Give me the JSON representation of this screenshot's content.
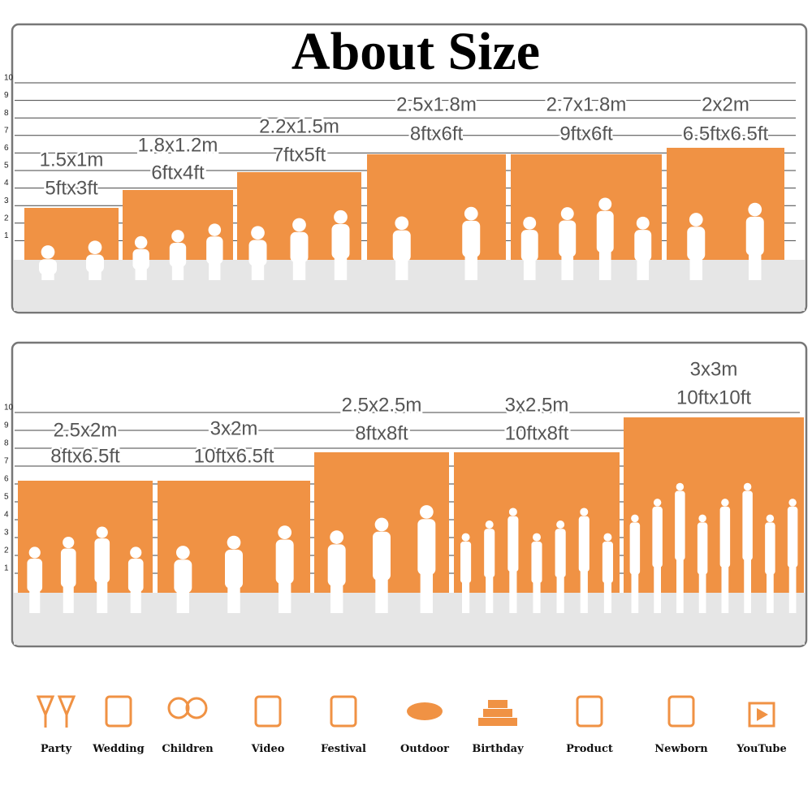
{
  "title": "About Size",
  "scale": [
    1,
    2,
    3,
    4,
    5,
    6,
    7,
    8,
    9,
    10
  ],
  "panels": [
    {
      "items": [
        {
          "metric": "1.5x1m",
          "feet": "5ftx3ft"
        },
        {
          "metric": "1.8x1.2m",
          "feet": "6ftx4ft"
        },
        {
          "metric": "2.2x1.5m",
          "feet": "7ftx5ft"
        },
        {
          "metric": "2.5x1.8m",
          "feet": "8ftx6ft"
        },
        {
          "metric": "2.7x1.8m",
          "feet": "9ftx6ft"
        },
        {
          "metric": "2x2m",
          "feet": "6.5ftx6.5ft"
        }
      ]
    },
    {
      "items": [
        {
          "metric": "2.5x2m",
          "feet": "8ftx6.5ft"
        },
        {
          "metric": "3x2m",
          "feet": "10ftx6.5ft"
        },
        {
          "metric": "2.5x2.5m",
          "feet": "8ftx8ft"
        },
        {
          "metric": "3x2.5m",
          "feet": "10ftx8ft"
        },
        {
          "metric": "3x3m",
          "feet": "10ftx10ft"
        }
      ]
    }
  ],
  "uses": [
    "Party",
    "Wedding",
    "Children",
    "Video",
    "Festival",
    "Outdoor",
    "Birthday",
    "Product",
    "Newborn",
    "YouTube"
  ]
}
